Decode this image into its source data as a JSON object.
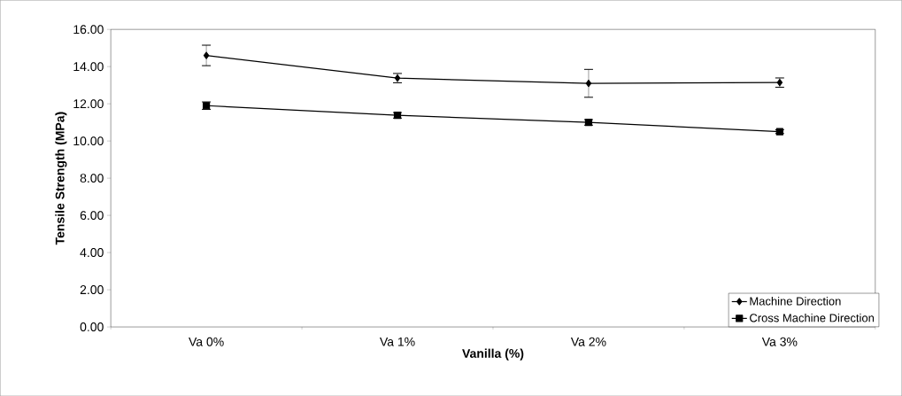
{
  "chart_data": {
    "type": "line",
    "xlabel": "Vanilla (%)",
    "ylabel": "Tensile Strength (MPa)",
    "categories": [
      "Va 0%",
      "Va 1%",
      "Va 2%",
      "Va 3%"
    ],
    "series": [
      {
        "name": "Machine Direction",
        "color": "#000000",
        "marker": "diamond",
        "values": [
          14.6,
          13.38,
          13.1,
          13.14
        ],
        "errors": [
          0.55,
          0.25,
          0.75,
          0.25
        ]
      },
      {
        "name": "Cross Machine Direction",
        "color": "#000000",
        "marker": "square",
        "values": [
          11.9,
          11.38,
          11.0,
          10.5
        ],
        "errors": [
          0.2,
          0.15,
          0.15,
          0.1
        ]
      }
    ],
    "ylim": [
      0,
      16
    ],
    "yticks": [
      {
        "value": 0,
        "label": "0.00"
      },
      {
        "value": 2,
        "label": "2.00"
      },
      {
        "value": 4,
        "label": "4.00"
      },
      {
        "value": 6,
        "label": "6.00"
      },
      {
        "value": 8,
        "label": "8.00"
      },
      {
        "value": 10,
        "label": "10.00"
      },
      {
        "value": 12,
        "label": "12.00"
      },
      {
        "value": 14,
        "label": "14.00"
      },
      {
        "value": 16,
        "label": "16.00"
      }
    ],
    "grid": false,
    "legend": "bottom right"
  }
}
